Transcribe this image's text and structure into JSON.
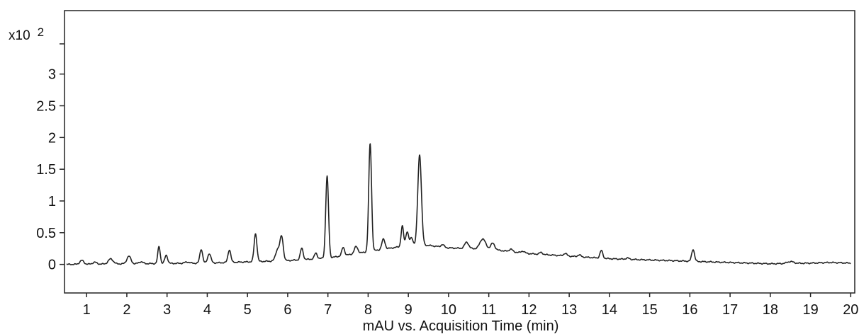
{
  "chart_data": {
    "type": "line",
    "xlabel": "mAU vs. Acquisition Time (min)",
    "y_multiplier": {
      "base": "x10",
      "exponent": "2"
    },
    "xlim": [
      0.45,
      20.1
    ],
    "ylim": [
      -0.45,
      4.0
    ],
    "xticks": [
      1,
      2,
      3,
      4,
      5,
      6,
      7,
      8,
      9,
      10,
      11,
      12,
      13,
      14,
      15,
      16,
      17,
      18,
      19,
      20
    ],
    "yticks": [
      0,
      0.5,
      1,
      1.5,
      2,
      2.5,
      3
    ],
    "ytick_labels": [
      "0",
      "0.5",
      "1",
      "1.5",
      "2",
      "2.5",
      "3"
    ],
    "grid": false,
    "line_color": "#222222",
    "baseline": [
      [
        0.5,
        0.0
      ],
      [
        2.0,
        0.01
      ],
      [
        4.0,
        0.02
      ],
      [
        6.0,
        0.06
      ],
      [
        7.0,
        0.1
      ],
      [
        8.0,
        0.2
      ],
      [
        9.0,
        0.3
      ],
      [
        9.5,
        0.3
      ],
      [
        10.0,
        0.26
      ],
      [
        11.0,
        0.24
      ],
      [
        12.0,
        0.17
      ],
      [
        13.0,
        0.13
      ],
      [
        14.0,
        0.09
      ],
      [
        15.0,
        0.07
      ],
      [
        16.0,
        0.05
      ],
      [
        17.0,
        0.03
      ],
      [
        18.0,
        0.01
      ],
      [
        19.0,
        0.02
      ],
      [
        19.5,
        0.03
      ],
      [
        20.0,
        0.02
      ]
    ],
    "peaks": [
      {
        "x": 0.88,
        "height": 0.06,
        "width": 0.05
      },
      {
        "x": 1.2,
        "height": 0.03,
        "width": 0.05
      },
      {
        "x": 1.6,
        "height": 0.08,
        "width": 0.06
      },
      {
        "x": 2.05,
        "height": 0.12,
        "width": 0.05
      },
      {
        "x": 2.35,
        "height": 0.03,
        "width": 0.05
      },
      {
        "x": 2.8,
        "height": 0.27,
        "width": 0.03
      },
      {
        "x": 2.98,
        "height": 0.13,
        "width": 0.035
      },
      {
        "x": 3.5,
        "height": 0.02,
        "width": 0.06
      },
      {
        "x": 3.85,
        "height": 0.22,
        "width": 0.035
      },
      {
        "x": 4.05,
        "height": 0.15,
        "width": 0.04
      },
      {
        "x": 4.55,
        "height": 0.2,
        "width": 0.035
      },
      {
        "x": 5.2,
        "height": 0.44,
        "width": 0.035
      },
      {
        "x": 5.75,
        "height": 0.18,
        "width": 0.05
      },
      {
        "x": 5.85,
        "height": 0.37,
        "width": 0.04
      },
      {
        "x": 6.35,
        "height": 0.18,
        "width": 0.035
      },
      {
        "x": 6.7,
        "height": 0.09,
        "width": 0.035
      },
      {
        "x": 6.98,
        "height": 1.29,
        "width": 0.035
      },
      {
        "x": 7.38,
        "height": 0.13,
        "width": 0.035
      },
      {
        "x": 7.7,
        "height": 0.11,
        "width": 0.045
      },
      {
        "x": 8.05,
        "height": 1.7,
        "width": 0.035
      },
      {
        "x": 8.38,
        "height": 0.16,
        "width": 0.04
      },
      {
        "x": 8.85,
        "height": 0.32,
        "width": 0.03
      },
      {
        "x": 8.97,
        "height": 0.22,
        "width": 0.035
      },
      {
        "x": 9.08,
        "height": 0.12,
        "width": 0.035
      },
      {
        "x": 9.28,
        "height": 1.43,
        "width": 0.045
      },
      {
        "x": 9.85,
        "height": 0.04,
        "width": 0.04
      },
      {
        "x": 10.45,
        "height": 0.1,
        "width": 0.05
      },
      {
        "x": 10.85,
        "height": 0.16,
        "width": 0.07
      },
      {
        "x": 11.1,
        "height": 0.1,
        "width": 0.05
      },
      {
        "x": 11.55,
        "height": 0.04,
        "width": 0.04
      },
      {
        "x": 11.85,
        "height": 0.03,
        "width": 0.04
      },
      {
        "x": 12.3,
        "height": 0.03,
        "width": 0.04
      },
      {
        "x": 12.9,
        "height": 0.04,
        "width": 0.04
      },
      {
        "x": 13.25,
        "height": 0.03,
        "width": 0.04
      },
      {
        "x": 13.8,
        "height": 0.12,
        "width": 0.035
      },
      {
        "x": 14.45,
        "height": 0.02,
        "width": 0.04
      },
      {
        "x": 16.08,
        "height": 0.19,
        "width": 0.035
      },
      {
        "x": 18.5,
        "height": 0.03,
        "width": 0.08
      }
    ]
  }
}
